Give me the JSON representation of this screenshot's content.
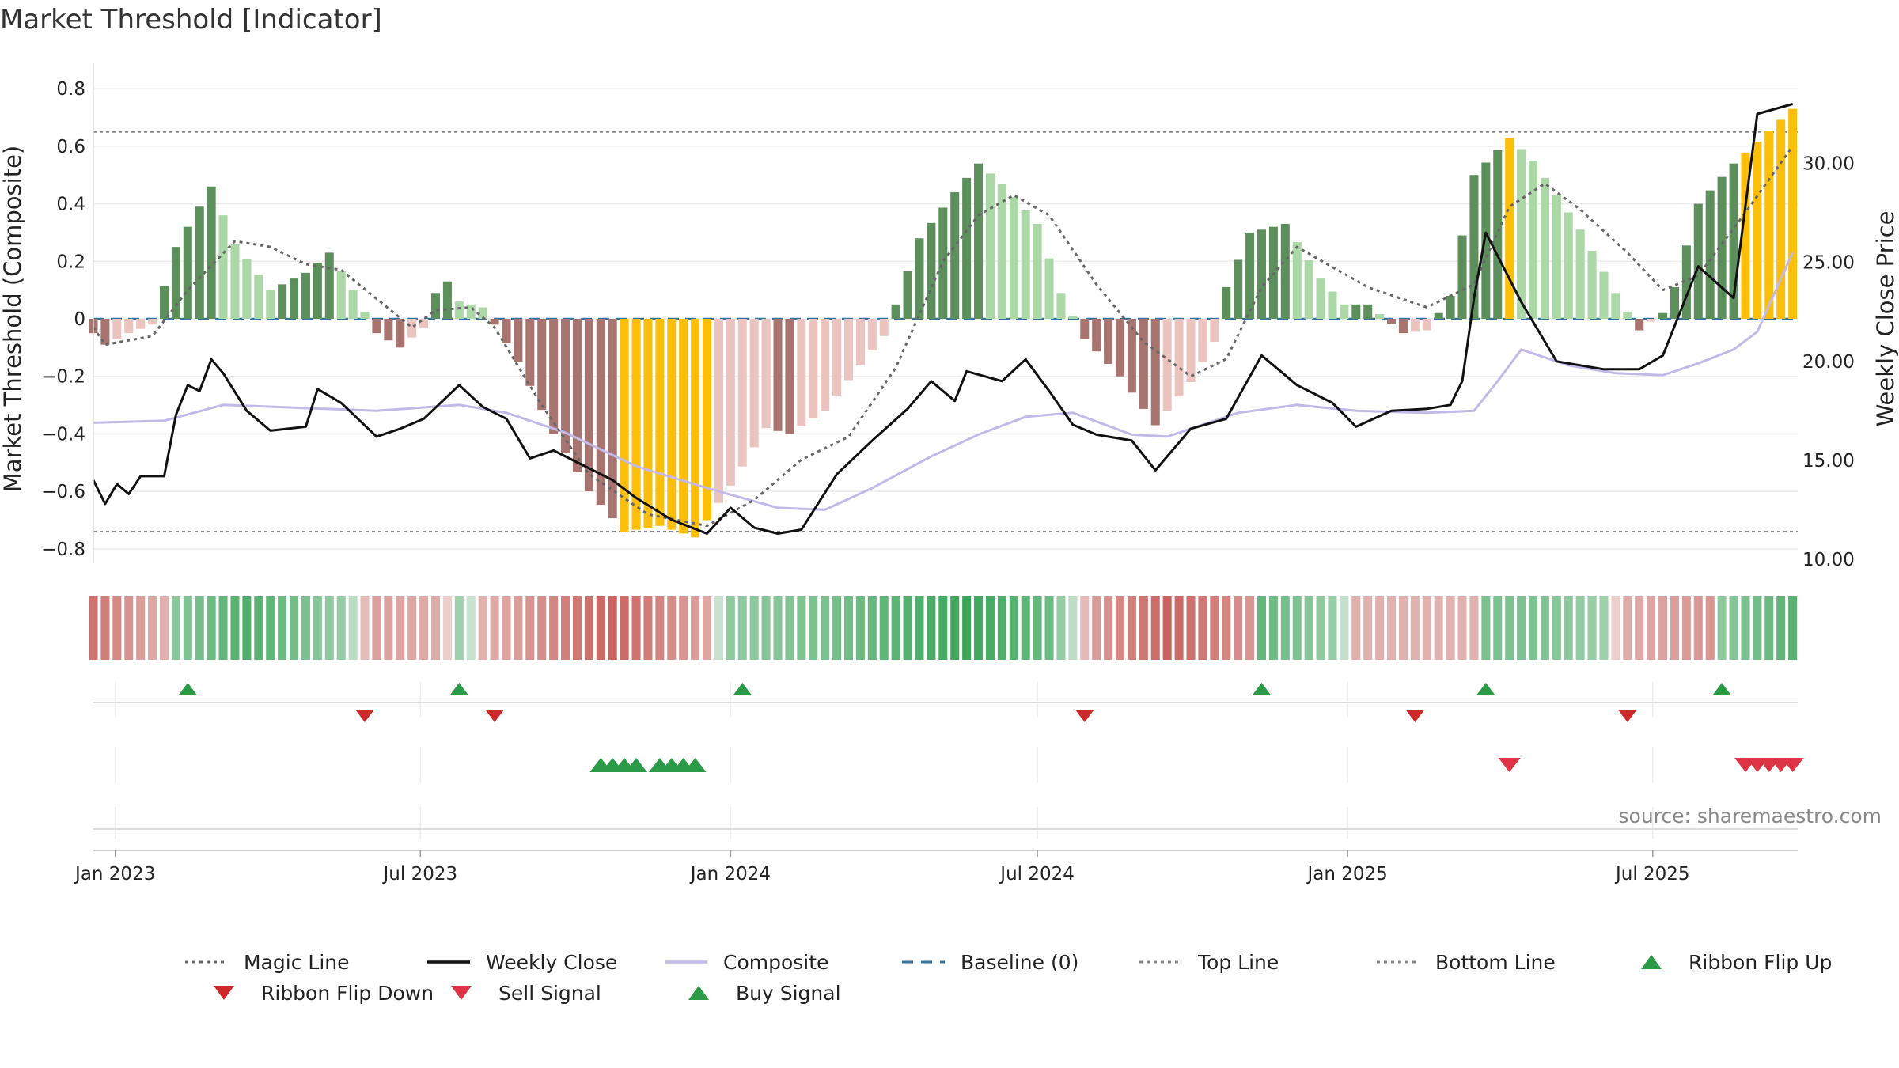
{
  "title": "Market Threshold [Indicator]",
  "source": "source: sharemaestro.com",
  "colors": {
    "pos_strong": "#5d8f5d",
    "pos_weak": "#acd8a7",
    "neg_strong": "#a8746f",
    "neg_weak": "#ebc3bf",
    "extreme": "#fbbf0a",
    "weekly_close": "#111111",
    "composite": "#c3b9e8",
    "magic": "#666666",
    "baseline": "#3274a1",
    "flip_up": "#2a9a46",
    "flip_down": "#cc2a2a",
    "sell": "#dd3344",
    "buy": "#2a9a46"
  },
  "chart_data": {
    "type": "bar",
    "title": "Market Threshold [Indicator]",
    "ylabel": "Market Threshold (Composite)",
    "y2label": "Weekly Close Price",
    "ylim": [
      -0.85,
      0.85
    ],
    "y2lim": [
      9.8,
      34.5
    ],
    "yticks": [
      0.8,
      0.6,
      0.4,
      0.2,
      0,
      -0.2,
      -0.4,
      -0.6,
      -0.8
    ],
    "ytick_labels": [
      "0.8",
      "0.6",
      "0.4",
      "0.2",
      "0",
      "−0.2",
      "−0.4",
      "−0.6",
      "−0.8"
    ],
    "y2ticks": [
      30,
      25,
      20,
      15,
      10
    ],
    "y2tick_labels": [
      "30.00",
      "25.00",
      "20.00",
      "15.00",
      "10.00"
    ],
    "x_start": "2022-12-19",
    "x_end": "2025-09-25",
    "xtick_dates": [
      "2023-01-01",
      "2023-07-01",
      "2024-01-01",
      "2024-07-01",
      "2025-01-01",
      "2025-07-01"
    ],
    "xtick_labels": [
      "Jan 2023",
      "Jul 2023",
      "Jan 2024",
      "Jul 2024",
      "Jan 2025",
      "Jul 2025"
    ],
    "top_line": 0.65,
    "bottom_line": -0.74,
    "grid": true,
    "legend_placement": "bottom",
    "composite_bar_anchors": [
      [
        "2022-12-19",
        -0.05
      ],
      [
        "2022-12-26",
        -0.09
      ],
      [
        "2023-01-09",
        -0.05
      ],
      [
        "2023-01-23",
        -0.02
      ],
      [
        "2023-02-06",
        0.25
      ],
      [
        "2023-02-27",
        0.46
      ],
      [
        "2023-03-13",
        0.26
      ],
      [
        "2023-04-03",
        0.1
      ],
      [
        "2023-04-24",
        0.16
      ],
      [
        "2023-05-08",
        0.23
      ],
      [
        "2023-05-22",
        0.1
      ],
      [
        "2023-06-05",
        -0.05
      ],
      [
        "2023-06-19",
        -0.1
      ],
      [
        "2023-07-03",
        -0.03
      ],
      [
        "2023-07-10",
        0.09
      ],
      [
        "2023-07-17",
        0.13
      ],
      [
        "2023-07-24",
        0.06
      ],
      [
        "2023-08-07",
        0.04
      ],
      [
        "2023-08-14",
        -0.02
      ],
      [
        "2023-08-28",
        -0.15
      ],
      [
        "2023-09-18",
        -0.4
      ],
      [
        "2023-10-09",
        -0.6
      ],
      [
        "2023-10-30",
        -0.74
      ],
      [
        "2023-11-20",
        -0.72
      ],
      [
        "2023-12-11",
        -0.76
      ],
      [
        "2024-01-01",
        -0.58
      ],
      [
        "2024-01-22",
        -0.38
      ],
      [
        "2024-02-05",
        -0.4
      ],
      [
        "2024-02-26",
        -0.32
      ],
      [
        "2024-03-18",
        -0.16
      ],
      [
        "2024-04-01",
        -0.06
      ],
      [
        "2024-04-08",
        0.05
      ],
      [
        "2024-04-22",
        0.28
      ],
      [
        "2024-05-13",
        0.44
      ],
      [
        "2024-05-27",
        0.54
      ],
      [
        "2024-06-10",
        0.47
      ],
      [
        "2024-07-01",
        0.33
      ],
      [
        "2024-07-15",
        0.09
      ],
      [
        "2024-07-29",
        -0.07
      ],
      [
        "2024-08-19",
        -0.2
      ],
      [
        "2024-09-09",
        -0.37
      ],
      [
        "2024-09-30",
        -0.22
      ],
      [
        "2024-10-14",
        -0.08
      ],
      [
        "2024-10-21",
        0.11
      ],
      [
        "2024-11-04",
        0.3
      ],
      [
        "2024-11-25",
        0.33
      ],
      [
        "2024-12-16",
        0.14
      ],
      [
        "2024-12-30",
        0.05
      ],
      [
        "2025-01-13",
        0.05
      ],
      [
        "2025-02-03",
        -0.05
      ],
      [
        "2025-02-17",
        -0.04
      ],
      [
        "2025-03-03",
        0.08
      ],
      [
        "2025-03-17",
        0.5
      ],
      [
        "2025-04-07",
        0.63
      ],
      [
        "2025-04-21",
        0.55
      ],
      [
        "2025-05-19",
        0.31
      ],
      [
        "2025-06-09",
        0.09
      ],
      [
        "2025-06-23",
        -0.04
      ],
      [
        "2025-07-07",
        0.02
      ],
      [
        "2025-07-14",
        0.11
      ],
      [
        "2025-07-28",
        0.4
      ],
      [
        "2025-08-18",
        0.54
      ],
      [
        "2025-09-22",
        0.73
      ]
    ],
    "extreme_bars": [
      [
        "2023-10-30",
        "2023-11-20"
      ],
      [
        "2023-11-27",
        "2023-12-18"
      ],
      [
        "2025-04-07",
        "2025-04-07"
      ],
      [
        "2025-08-25",
        "2025-09-22"
      ]
    ],
    "weekly_close_anchors": [
      [
        "2022-12-19",
        14.0
      ],
      [
        "2022-12-26",
        12.8
      ],
      [
        "2023-01-02",
        13.8
      ],
      [
        "2023-01-09",
        13.3
      ],
      [
        "2023-01-16",
        14.2
      ],
      [
        "2023-01-30",
        14.2
      ],
      [
        "2023-02-06",
        17.3
      ],
      [
        "2023-02-13",
        18.8
      ],
      [
        "2023-02-20",
        18.5
      ],
      [
        "2023-02-27",
        20.1
      ],
      [
        "2023-03-06",
        19.4
      ],
      [
        "2023-03-20",
        17.5
      ],
      [
        "2023-04-03",
        16.5
      ],
      [
        "2023-04-24",
        16.7
      ],
      [
        "2023-05-01",
        18.6
      ],
      [
        "2023-05-15",
        17.9
      ],
      [
        "2023-06-05",
        16.2
      ],
      [
        "2023-06-19",
        16.6
      ],
      [
        "2023-07-03",
        17.1
      ],
      [
        "2023-07-24",
        18.8
      ],
      [
        "2023-08-07",
        17.7
      ],
      [
        "2023-08-21",
        17.1
      ],
      [
        "2023-09-04",
        15.1
      ],
      [
        "2023-09-18",
        15.5
      ],
      [
        "2023-10-09",
        14.6
      ],
      [
        "2023-10-23",
        14.0
      ],
      [
        "2023-11-06",
        13.1
      ],
      [
        "2023-11-27",
        12.0
      ],
      [
        "2023-12-18",
        11.3
      ],
      [
        "2024-01-01",
        12.6
      ],
      [
        "2024-01-15",
        11.6
      ],
      [
        "2024-01-29",
        11.3
      ],
      [
        "2024-02-12",
        11.5
      ],
      [
        "2024-03-04",
        14.3
      ],
      [
        "2024-03-25",
        16.0
      ],
      [
        "2024-04-15",
        17.6
      ],
      [
        "2024-04-29",
        19.0
      ],
      [
        "2024-05-13",
        18.0
      ],
      [
        "2024-05-20",
        19.5
      ],
      [
        "2024-06-10",
        19.0
      ],
      [
        "2024-06-24",
        20.1
      ],
      [
        "2024-07-08",
        18.5
      ],
      [
        "2024-07-22",
        16.8
      ],
      [
        "2024-08-05",
        16.3
      ],
      [
        "2024-08-26",
        16.0
      ],
      [
        "2024-09-09",
        14.5
      ],
      [
        "2024-09-30",
        16.6
      ],
      [
        "2024-10-21",
        17.1
      ],
      [
        "2024-11-11",
        20.3
      ],
      [
        "2024-12-02",
        18.8
      ],
      [
        "2024-12-23",
        17.9
      ],
      [
        "2025-01-06",
        16.7
      ],
      [
        "2025-01-27",
        17.5
      ],
      [
        "2025-02-17",
        17.6
      ],
      [
        "2025-03-03",
        17.8
      ],
      [
        "2025-03-10",
        19.0
      ],
      [
        "2025-03-17",
        23.2
      ],
      [
        "2025-03-24",
        26.5
      ],
      [
        "2025-04-14",
        23.0
      ],
      [
        "2025-05-05",
        20.0
      ],
      [
        "2025-06-02",
        19.6
      ],
      [
        "2025-06-23",
        19.6
      ],
      [
        "2025-07-07",
        20.3
      ],
      [
        "2025-07-28",
        24.8
      ],
      [
        "2025-08-18",
        23.2
      ],
      [
        "2025-09-01",
        32.5
      ],
      [
        "2025-09-22",
        33.0
      ]
    ],
    "composite_line_anchors": [
      [
        "2022-12-19",
        16.9
      ],
      [
        "2023-01-30",
        17.0
      ],
      [
        "2023-03-06",
        17.8
      ],
      [
        "2023-06-05",
        17.5
      ],
      [
        "2023-07-24",
        17.8
      ],
      [
        "2023-08-21",
        17.4
      ],
      [
        "2023-09-25",
        16.4
      ],
      [
        "2023-11-06",
        14.7
      ],
      [
        "2023-12-18",
        13.6
      ],
      [
        "2024-01-29",
        12.6
      ],
      [
        "2024-02-26",
        12.5
      ],
      [
        "2024-03-25",
        13.6
      ],
      [
        "2024-04-29",
        15.2
      ],
      [
        "2024-05-27",
        16.3
      ],
      [
        "2024-06-24",
        17.2
      ],
      [
        "2024-07-22",
        17.4
      ],
      [
        "2024-08-26",
        16.3
      ],
      [
        "2024-09-16",
        16.2
      ],
      [
        "2024-10-28",
        17.4
      ],
      [
        "2024-12-02",
        17.8
      ],
      [
        "2025-01-06",
        17.5
      ],
      [
        "2025-02-17",
        17.4
      ],
      [
        "2025-03-17",
        17.5
      ],
      [
        "2025-03-31",
        19.0
      ],
      [
        "2025-04-14",
        20.6
      ],
      [
        "2025-05-12",
        19.8
      ],
      [
        "2025-06-09",
        19.4
      ],
      [
        "2025-07-07",
        19.3
      ],
      [
        "2025-07-28",
        19.9
      ],
      [
        "2025-08-18",
        20.6
      ],
      [
        "2025-09-01",
        21.5
      ],
      [
        "2025-09-22",
        25.5
      ]
    ],
    "magic_line_anchors": [
      [
        "2022-12-19",
        -0.03
      ],
      [
        "2022-12-26",
        -0.09
      ],
      [
        "2023-01-23",
        -0.06
      ],
      [
        "2023-02-13",
        0.1
      ],
      [
        "2023-03-13",
        0.27
      ],
      [
        "2023-04-03",
        0.25
      ],
      [
        "2023-04-24",
        0.19
      ],
      [
        "2023-05-15",
        0.17
      ],
      [
        "2023-06-05",
        0.07
      ],
      [
        "2023-06-26",
        -0.03
      ],
      [
        "2023-07-10",
        0.03
      ],
      [
        "2023-07-31",
        0.04
      ],
      [
        "2023-08-14",
        -0.03
      ],
      [
        "2023-09-11",
        -0.3
      ],
      [
        "2023-10-09",
        -0.54
      ],
      [
        "2023-11-13",
        -0.68
      ],
      [
        "2023-12-18",
        -0.72
      ],
      [
        "2024-01-15",
        -0.63
      ],
      [
        "2024-02-12",
        -0.49
      ],
      [
        "2024-03-11",
        -0.41
      ],
      [
        "2024-04-08",
        -0.17
      ],
      [
        "2024-05-06",
        0.2
      ],
      [
        "2024-05-27",
        0.36
      ],
      [
        "2024-06-17",
        0.43
      ],
      [
        "2024-07-08",
        0.36
      ],
      [
        "2024-08-05",
        0.12
      ],
      [
        "2024-09-02",
        -0.08
      ],
      [
        "2024-09-30",
        -0.2
      ],
      [
        "2024-10-21",
        -0.14
      ],
      [
        "2024-11-11",
        0.11
      ],
      [
        "2024-12-02",
        0.25
      ],
      [
        "2024-12-23",
        0.18
      ],
      [
        "2025-01-13",
        0.11
      ],
      [
        "2025-02-17",
        0.04
      ],
      [
        "2025-03-17",
        0.12
      ],
      [
        "2025-04-07",
        0.39
      ],
      [
        "2025-04-28",
        0.47
      ],
      [
        "2025-05-19",
        0.38
      ],
      [
        "2025-06-16",
        0.23
      ],
      [
        "2025-07-07",
        0.1
      ],
      [
        "2025-07-28",
        0.15
      ],
      [
        "2025-08-25",
        0.37
      ],
      [
        "2025-09-22",
        0.6
      ]
    ],
    "ribbon_anchors": [
      [
        "2022-12-19",
        -0.85
      ],
      [
        "2023-01-30",
        -0.3
      ],
      [
        "2023-02-06",
        0.45
      ],
      [
        "2023-03-20",
        0.85
      ],
      [
        "2023-05-15",
        0.35
      ],
      [
        "2023-06-05",
        -0.45
      ],
      [
        "2023-07-10",
        -0.35
      ],
      [
        "2023-07-24",
        0.3
      ],
      [
        "2023-08-07",
        -0.3
      ],
      [
        "2023-10-23",
        -1.0
      ],
      [
        "2023-12-18",
        -0.4
      ],
      [
        "2024-01-01",
        0.4
      ],
      [
        "2024-02-26",
        0.55
      ],
      [
        "2024-05-20",
        1.0
      ],
      [
        "2024-07-08",
        0.65
      ],
      [
        "2024-08-05",
        -0.5
      ],
      [
        "2024-09-16",
        -1.0
      ],
      [
        "2024-11-04",
        -0.55
      ],
      [
        "2024-11-11",
        0.7
      ],
      [
        "2024-12-23",
        0.35
      ],
      [
        "2025-01-06",
        -0.3
      ],
      [
        "2025-03-17",
        -0.3
      ],
      [
        "2025-03-24",
        0.55
      ],
      [
        "2025-04-28",
        0.5
      ],
      [
        "2025-06-02",
        0.3
      ],
      [
        "2025-06-16",
        -0.35
      ],
      [
        "2025-08-04",
        -0.55
      ],
      [
        "2025-08-11",
        0.4
      ],
      [
        "2025-09-22",
        0.8
      ]
    ],
    "ribbon_flip_up": [
      "2023-02-13",
      "2023-07-24",
      "2024-01-08",
      "2024-11-11",
      "2025-03-24",
      "2025-08-11"
    ],
    "ribbon_flip_down": [
      "2023-05-29",
      "2023-08-14",
      "2024-07-29",
      "2025-02-10",
      "2025-06-16"
    ],
    "buy_signals": [
      "2023-10-16",
      "2023-10-23",
      "2023-10-30",
      "2023-11-06",
      "2023-11-20",
      "2023-11-27",
      "2023-12-04",
      "2023-12-11"
    ],
    "sell_signals": [
      "2025-04-07",
      "2025-08-25",
      "2025-09-01",
      "2025-09-08",
      "2025-09-15",
      "2025-09-22"
    ]
  },
  "legend": [
    {
      "label": "Magic Line",
      "icon": "dotted-line"
    },
    {
      "label": "Weekly Close",
      "icon": "solid-line"
    },
    {
      "label": "Composite",
      "icon": "solid-line"
    },
    {
      "label": "Baseline (0)",
      "icon": "dashed-line"
    },
    {
      "label": "Top Line",
      "icon": "dotted-line"
    },
    {
      "label": "Bottom Line",
      "icon": "dotted-line"
    },
    {
      "label": "Ribbon Flip Up",
      "icon": "triangle-up"
    },
    {
      "label": "Ribbon Flip Down",
      "icon": "triangle-down"
    },
    {
      "label": "Sell Signal",
      "icon": "triangle-down"
    },
    {
      "label": "Buy Signal",
      "icon": "triangle-up"
    }
  ]
}
